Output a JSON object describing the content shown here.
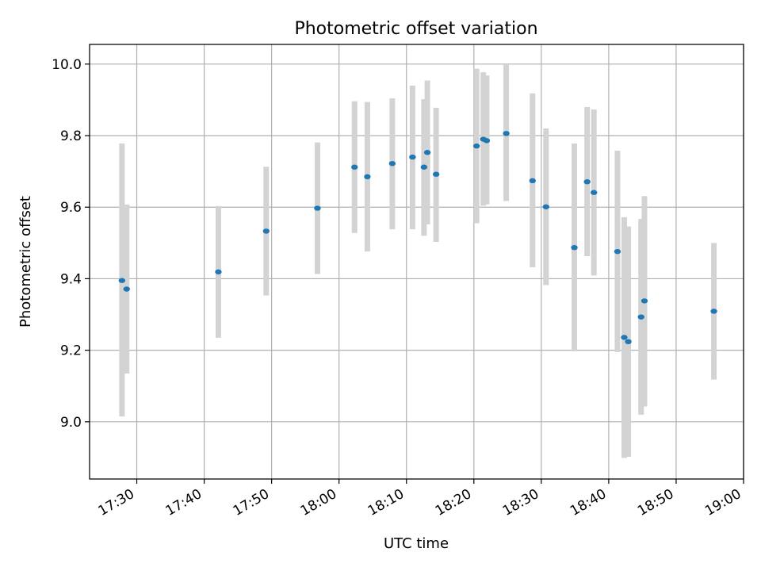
{
  "chart_data": {
    "type": "scatter",
    "title": "Photometric offset variation",
    "xlabel": "UTC time",
    "ylabel": "Photometric offset",
    "xlim": [
      "17:23",
      "19:00"
    ],
    "ylim": [
      8.84,
      10.055
    ],
    "grid": true,
    "x_ticks": [
      "17:30",
      "17:40",
      "17:50",
      "18:00",
      "18:10",
      "18:20",
      "18:30",
      "18:40",
      "18:50",
      "19:00"
    ],
    "y_ticks": [
      "9.0",
      "9.2",
      "9.4",
      "9.6",
      "9.8",
      "10.0"
    ],
    "colors": {
      "marker": "#1f77b4",
      "errorbar": "#d3d3d3",
      "grid": "#b0b0b0"
    },
    "points": [
      {
        "time": "17:27:48",
        "y": 9.395,
        "ylow": 9.015,
        "yhigh": 9.778
      },
      {
        "time": "17:28:30",
        "y": 9.371,
        "ylow": 9.135,
        "yhigh": 9.607
      },
      {
        "time": "17:42:06",
        "y": 9.419,
        "ylow": 9.235,
        "yhigh": 9.603
      },
      {
        "time": "17:49:12",
        "y": 9.533,
        "ylow": 9.353,
        "yhigh": 9.713
      },
      {
        "time": "17:56:48",
        "y": 9.597,
        "ylow": 9.413,
        "yhigh": 9.781
      },
      {
        "time": "18:02:18",
        "y": 9.712,
        "ylow": 9.528,
        "yhigh": 9.896
      },
      {
        "time": "18:04:12",
        "y": 9.685,
        "ylow": 9.476,
        "yhigh": 9.894
      },
      {
        "time": "18:07:54",
        "y": 9.722,
        "ylow": 9.538,
        "yhigh": 9.904
      },
      {
        "time": "18:10:54",
        "y": 9.74,
        "ylow": 9.538,
        "yhigh": 9.94
      },
      {
        "time": "18:12:36",
        "y": 9.712,
        "ylow": 9.52,
        "yhigh": 9.902
      },
      {
        "time": "18:13:06",
        "y": 9.753,
        "ylow": 9.552,
        "yhigh": 9.954
      },
      {
        "time": "18:14:24",
        "y": 9.692,
        "ylow": 9.503,
        "yhigh": 9.878
      },
      {
        "time": "18:20:24",
        "y": 9.771,
        "ylow": 9.555,
        "yhigh": 9.987
      },
      {
        "time": "18:21:24",
        "y": 9.79,
        "ylow": 9.604,
        "yhigh": 9.977
      },
      {
        "time": "18:21:54",
        "y": 9.786,
        "ylow": 9.608,
        "yhigh": 9.968
      },
      {
        "time": "18:24:48",
        "y": 9.806,
        "ylow": 9.617,
        "yhigh": 9.998
      },
      {
        "time": "18:28:42",
        "y": 9.674,
        "ylow": 9.432,
        "yhigh": 9.918
      },
      {
        "time": "18:30:42",
        "y": 9.601,
        "ylow": 9.382,
        "yhigh": 9.82
      },
      {
        "time": "18:34:54",
        "y": 9.487,
        "ylow": 9.197,
        "yhigh": 9.778
      },
      {
        "time": "18:36:48",
        "y": 9.671,
        "ylow": 9.463,
        "yhigh": 9.88
      },
      {
        "time": "18:37:48",
        "y": 9.641,
        "ylow": 9.409,
        "yhigh": 9.873
      },
      {
        "time": "18:41:18",
        "y": 9.476,
        "ylow": 9.195,
        "yhigh": 9.758
      },
      {
        "time": "18:42:18",
        "y": 9.236,
        "ylow": 8.899,
        "yhigh": 9.572
      },
      {
        "time": "18:42:54",
        "y": 9.224,
        "ylow": 8.902,
        "yhigh": 9.546
      },
      {
        "time": "18:44:48",
        "y": 9.293,
        "ylow": 9.02,
        "yhigh": 9.567
      },
      {
        "time": "18:45:18",
        "y": 9.338,
        "ylow": 9.043,
        "yhigh": 9.631
      },
      {
        "time": "18:55:36",
        "y": 9.309,
        "ylow": 9.118,
        "yhigh": 9.5
      }
    ]
  }
}
